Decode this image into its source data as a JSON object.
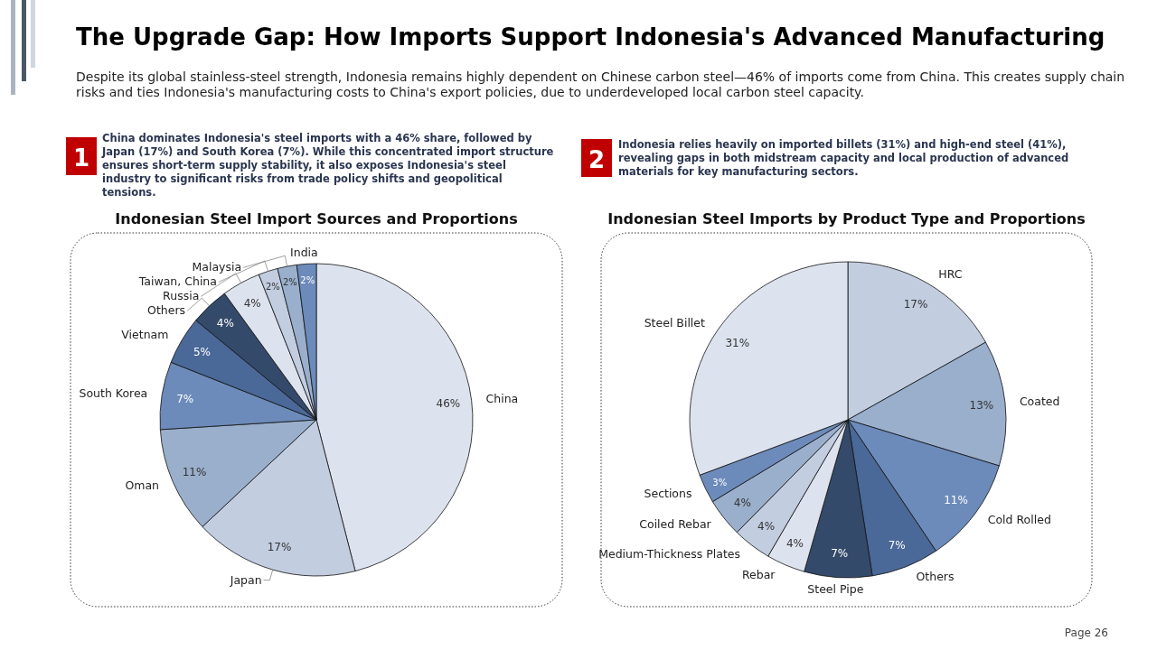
{
  "chart_data": [
    {
      "type": "other",
      "title": "The Upgrade Gap: How Imports Support Indonesia's Advanced Manufacturing",
      "subtitle": "Despite its global stainless-steel strength, Indonesia remains highly dependent on Chinese carbon steel—46% of imports come from China. This creates supply chain risks and ties Indonesia's manufacturing costs to China's export policies, due to underdeveloped local carbon steel capacity.",
      "annotations": [
        "1",
        "China dominates Indonesia's steel imports with a 46% share, followed by Japan (17%) and South Korea (7%). While this concentrated import structure ensures short-term supply stability, it also exposes Indonesia's steel industry to significant risks from trade policy shifts and geopolitical tensions.",
        "2",
        "Indonesia relies heavily on imported billets (31%) and high-end steel (41%), revealing gaps in both midstream capacity and local production of advanced materials for key manufacturing sectors.",
        "Page 26"
      ]
    },
    {
      "type": "pie",
      "title": "Indonesian Steel Import Sources and Proportions",
      "categories": [
        "China",
        "Japan",
        "Oman",
        "South Korea",
        "Vietnam",
        "Others",
        "Russia",
        "Taiwan, China",
        "Malaysia",
        "India"
      ],
      "values": [
        46,
        17,
        11,
        7,
        5,
        4,
        4,
        2,
        2,
        2
      ],
      "value_labels": [
        "46%",
        "17%",
        "11%",
        "7%",
        "5%",
        "4%",
        "4%",
        "2%",
        "2%",
        "2%"
      ],
      "colors": [
        "#dde3ee",
        "#c2cde0",
        "#9aafcc",
        "#6c8bbb",
        "#4a6898",
        "#344a6b",
        "#dde3ee",
        "#c2cde0",
        "#9aafcc",
        "#6c8bbb"
      ]
    },
    {
      "type": "pie",
      "title": "Indonesian Steel Imports by Product Type and Proportions",
      "categories": [
        "HRC",
        "Coated",
        "Cold Rolled",
        "Others",
        "Steel Pipe",
        "Rebar",
        "Medium-Thickness Plates",
        "Coiled Rebar",
        "Sections",
        "Steel Billet"
      ],
      "values": [
        17,
        13,
        11,
        7,
        7,
        4,
        4,
        4,
        3,
        31
      ],
      "value_labels": [
        "17%",
        "13%",
        "11%",
        "7%",
        "7%",
        "4%",
        "4%",
        "4%",
        "3%",
        "31%"
      ],
      "colors": [
        "#c2cde0",
        "#9aafcc",
        "#6c8bbb",
        "#4a6898",
        "#344a6b",
        "#dde3ee",
        "#c2cde0",
        "#9aafcc",
        "#6c8bbb",
        "#dde3ee"
      ]
    }
  ]
}
